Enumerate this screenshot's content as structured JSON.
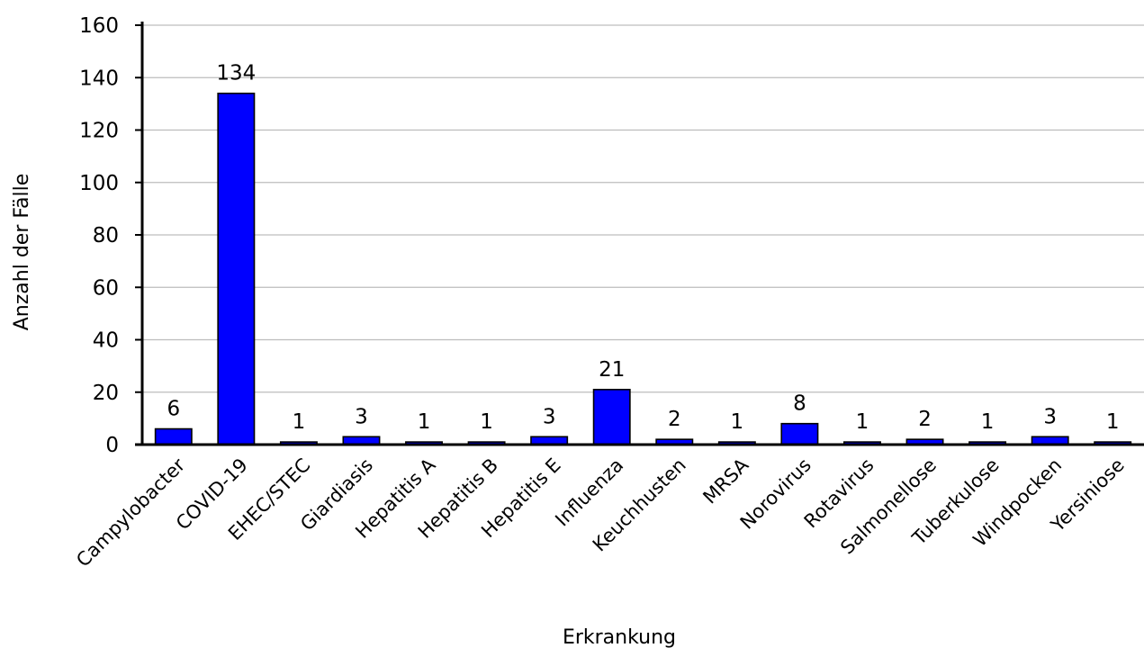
{
  "chart_data": {
    "type": "bar",
    "title": "",
    "xlabel": "Erkrankung",
    "ylabel": "Anzahl der Fälle",
    "ylim": [
      0,
      160
    ],
    "yticks": [
      0,
      20,
      40,
      60,
      80,
      100,
      120,
      140,
      160
    ],
    "grid": true,
    "bar_color": "#0000ff",
    "categories": [
      "Campylobacter",
      "COVID-19",
      "EHEC/STEC",
      "Giardiasis",
      "Hepatitis A",
      "Hepatitis B",
      "Hepatitis E",
      "Influenza",
      "Keuchhusten",
      "MRSA",
      "Norovirus",
      "Rotavirus",
      "Salmonellose",
      "Tuberkulose",
      "Windpocken",
      "Yersiniose"
    ],
    "values": [
      6,
      134,
      1,
      3,
      1,
      1,
      3,
      21,
      2,
      1,
      8,
      1,
      2,
      1,
      3,
      1
    ]
  }
}
